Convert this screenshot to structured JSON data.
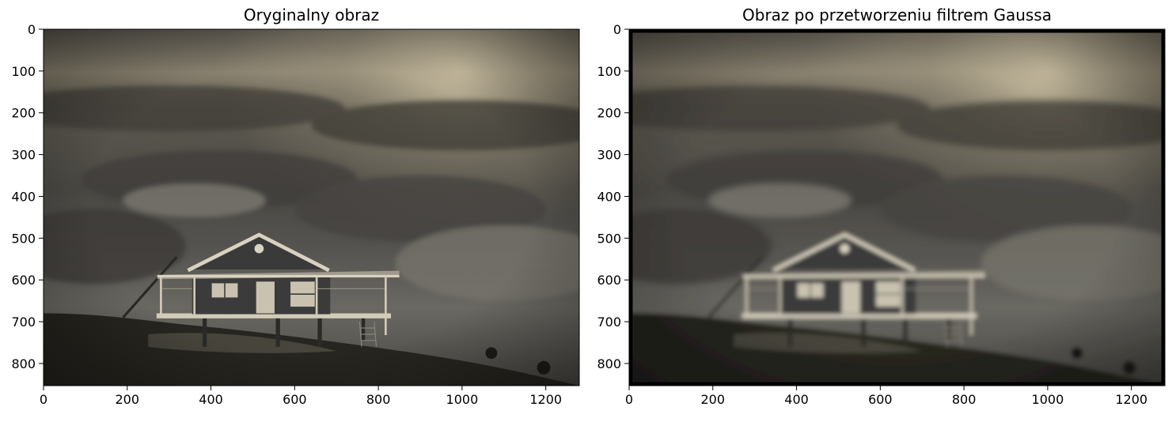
{
  "chart_data": [
    {
      "type": "image",
      "title": "Oryginalny obraz",
      "xlim": [
        0,
        1280
      ],
      "ylim": [
        853,
        0
      ],
      "xticks": [
        0,
        200,
        400,
        600,
        800,
        1000,
        1200
      ],
      "yticks": [
        0,
        100,
        200,
        300,
        400,
        500,
        600,
        700,
        800
      ],
      "xlabel": "",
      "ylabel": "",
      "grid": false,
      "content": "sepia-toned photograph: a stilt house on a grassy hill under a cloudy sky"
    },
    {
      "type": "image",
      "title": "Obraz po przetworzeniu filtrem Gaussa",
      "xlim": [
        0,
        1280
      ],
      "ylim": [
        853,
        0
      ],
      "xticks": [
        0,
        200,
        400,
        600,
        800,
        1000,
        1200
      ],
      "yticks": [
        0,
        100,
        200,
        300,
        400,
        500,
        600,
        700,
        800
      ],
      "xlabel": "",
      "ylabel": "",
      "grid": false,
      "content": "same photograph after Gaussian blur, with dark border"
    }
  ],
  "colors": {
    "sky_light": "#d2c6a8",
    "sky_mid": "#6a665c",
    "sky_dark": "#3d3b37",
    "ground": "#25241f",
    "house_wall": "#3a3a3a",
    "house_trim": "#d9d2c0",
    "axis": "#000000"
  }
}
